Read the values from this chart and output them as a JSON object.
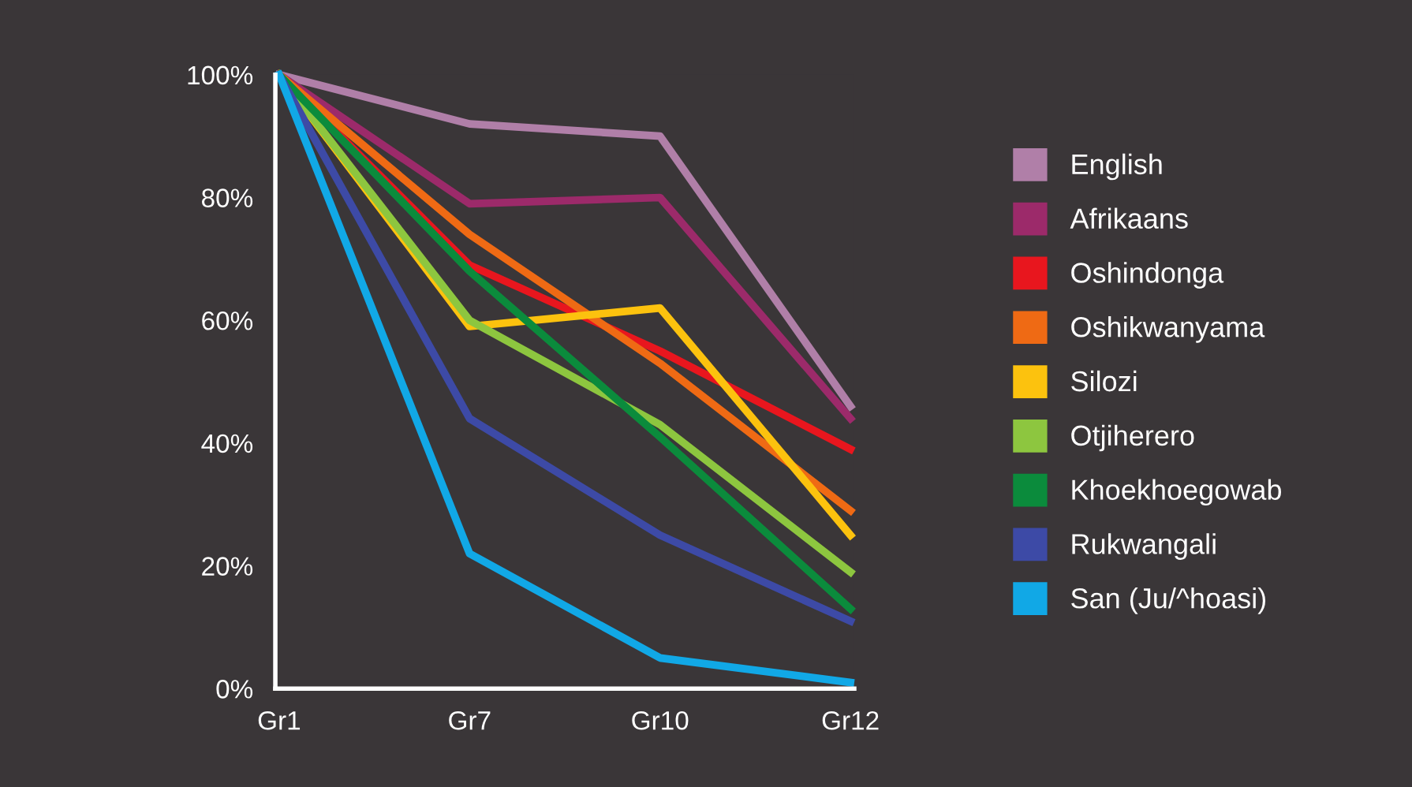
{
  "chart_data": {
    "type": "line",
    "categories": [
      "Gr1",
      "Gr7",
      "Gr10",
      "Gr12"
    ],
    "ylim": [
      0,
      100
    ],
    "yticks": [
      {
        "value": 0,
        "label": "0%"
      },
      {
        "value": 20,
        "label": "20%"
      },
      {
        "value": 40,
        "label": "40%"
      },
      {
        "value": 60,
        "label": "60%"
      },
      {
        "value": 80,
        "label": "80%"
      },
      {
        "value": 100,
        "label": "100%"
      }
    ],
    "grid": false,
    "legend": "right",
    "marker": "none",
    "line_style": "solid",
    "series": [
      {
        "name": "English",
        "color": "#b07fa8",
        "values": [
          100,
          92,
          90,
          46
        ]
      },
      {
        "name": "Afrikaans",
        "color": "#9c2a6a",
        "values": [
          100,
          79,
          80,
          44
        ]
      },
      {
        "name": "Oshindonga",
        "color": "#e8161e",
        "values": [
          100,
          69,
          55,
          39
        ]
      },
      {
        "name": "Oshikwanyama",
        "color": "#ef6a14",
        "values": [
          100,
          74,
          53,
          29
        ]
      },
      {
        "name": "Silozi",
        "color": "#fcc20e",
        "values": [
          100,
          59,
          62,
          25
        ]
      },
      {
        "name": "Otjiherero",
        "color": "#8dc63f",
        "values": [
          100,
          60,
          43,
          19
        ]
      },
      {
        "name": "Khoekhoegowab",
        "color": "#0b8b3c",
        "values": [
          100,
          68,
          41,
          13
        ]
      },
      {
        "name": "Rukwangali",
        "color": "#3d4aa6",
        "values": [
          100,
          44,
          25,
          11
        ]
      },
      {
        "name": "San (Ju/^hoasi)",
        "color": "#11a8e6",
        "values": [
          100,
          22,
          5,
          1
        ]
      }
    ]
  }
}
